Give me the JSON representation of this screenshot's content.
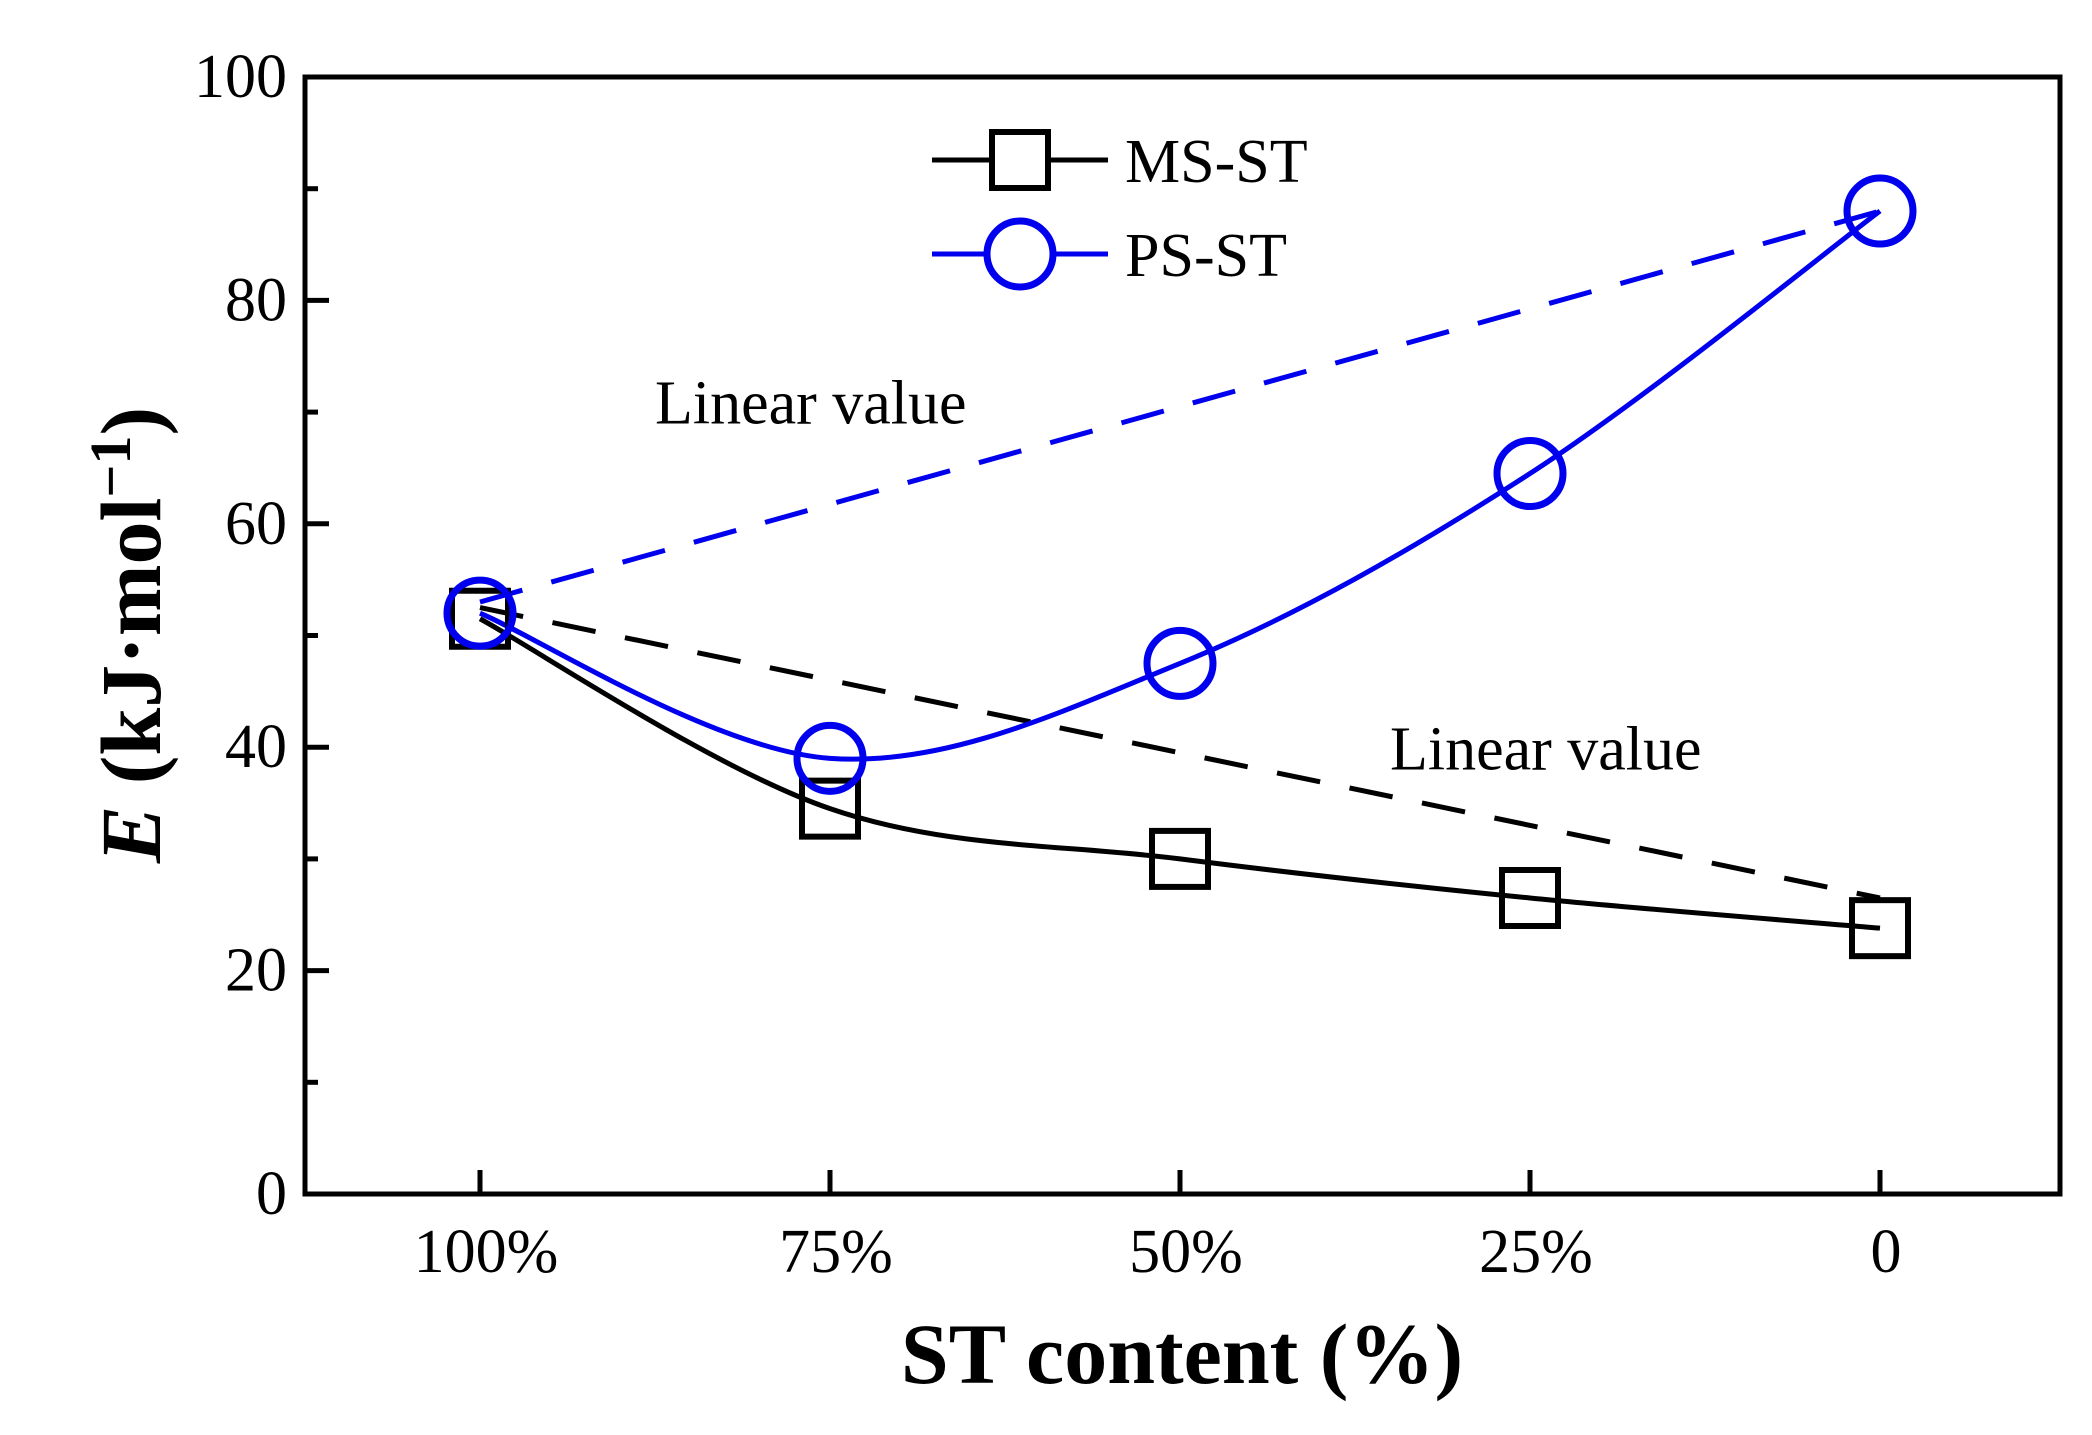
{
  "chart_data": {
    "type": "line",
    "title": "",
    "xlabel": "ST content (%)",
    "ylabel": {
      "symbol": "E",
      "rest": " (kJ·mol",
      "sup": "−1",
      "close": ")"
    },
    "categories": [
      "100%",
      "75%",
      "50%",
      "25%",
      "0"
    ],
    "ylim": [
      0,
      100
    ],
    "yticks": [
      "0",
      "20",
      "40",
      "60",
      "80",
      "100"
    ],
    "grid": false,
    "legend_position": "top-center",
    "series": [
      {
        "name": "MS-ST",
        "marker": "square",
        "color": "#000000",
        "values": [
          51.5,
          34.5,
          30,
          26.5,
          23.8
        ],
        "linear_value": [
          52.5,
          26.5
        ]
      },
      {
        "name": "PS-ST",
        "marker": "circle",
        "color": "#0000ee",
        "values": [
          52,
          39,
          47.5,
          64.5,
          88
        ],
        "linear_value": [
          53,
          88
        ]
      }
    ],
    "annotations": [
      {
        "id": "linear-upper",
        "text": "Linear value",
        "x": 0.5,
        "y": 69
      },
      {
        "id": "linear-lower",
        "text": "Linear value",
        "x": 2.6,
        "y": 38
      }
    ]
  }
}
